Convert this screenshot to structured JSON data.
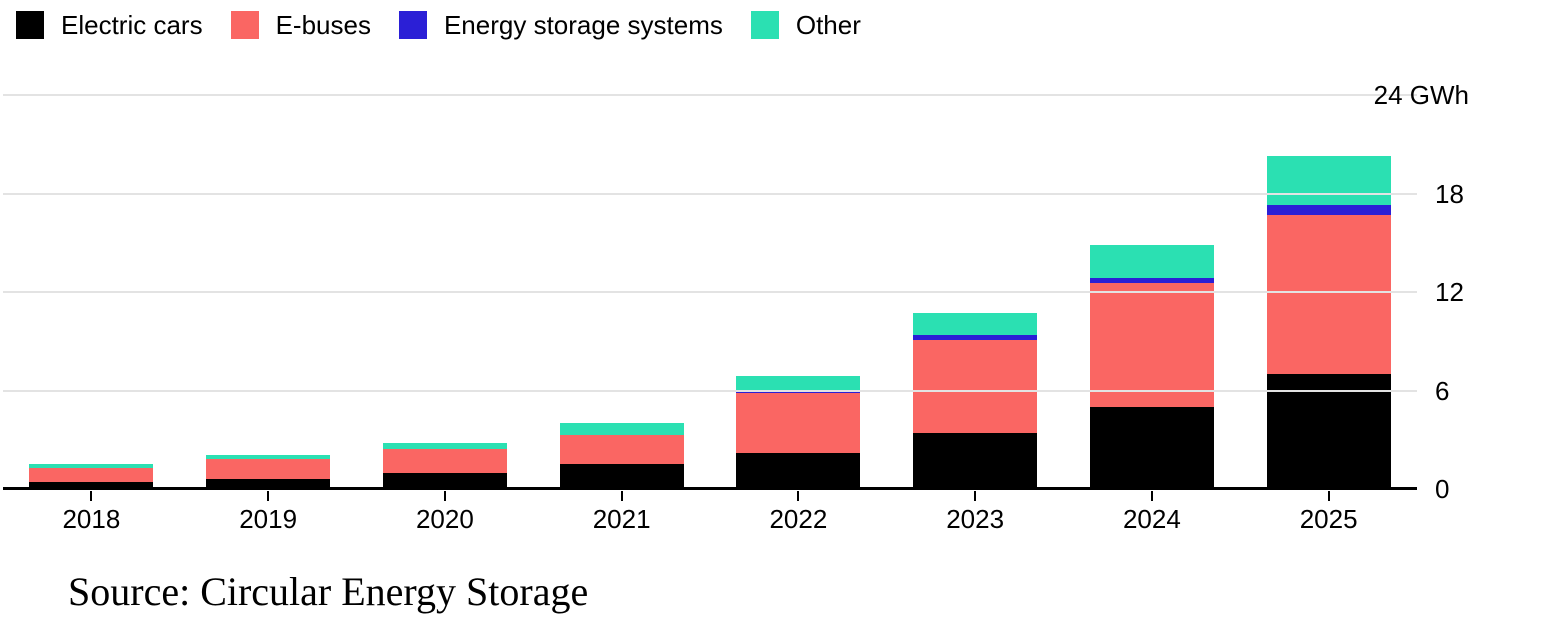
{
  "chart_data": {
    "type": "bar",
    "stacked": true,
    "categories": [
      "2018",
      "2019",
      "2020",
      "2021",
      "2022",
      "2023",
      "2024",
      "2025"
    ],
    "series": [
      {
        "name": "Electric cars",
        "color": "#000000",
        "values": [
          0.4,
          0.6,
          1.0,
          1.5,
          2.2,
          3.4,
          5.0,
          7.0
        ]
      },
      {
        "name": "E-buses",
        "color": "#FA6663",
        "values": [
          0.85,
          1.2,
          1.45,
          1.8,
          3.65,
          5.7,
          7.55,
          9.7
        ]
      },
      {
        "name": "Energy storage systems",
        "color": "#2B1FD6",
        "values": [
          0,
          0,
          0,
          0,
          0.2,
          0.3,
          0.3,
          0.6
        ]
      },
      {
        "name": "Other",
        "color": "#2BE0B2",
        "values": [
          0.3,
          0.3,
          0.35,
          0.7,
          0.85,
          1.35,
          2.0,
          3.0
        ]
      }
    ],
    "ylabel": "GWh",
    "ylim": [
      0,
      24
    ],
    "yticks": [
      {
        "value": 24,
        "label": "24 GWh"
      },
      {
        "value": 18,
        "label": "18"
      },
      {
        "value": 12,
        "label": "12"
      },
      {
        "value": 6,
        "label": "6"
      },
      {
        "value": 0,
        "label": "0"
      }
    ],
    "grid": true,
    "legend_position": "top-left",
    "source": "Source: Circular Energy Storage"
  },
  "colors": {
    "background": "#FFFFFF",
    "gridline": "#E3E3E3",
    "axis": "#000000",
    "text": "#000000"
  }
}
